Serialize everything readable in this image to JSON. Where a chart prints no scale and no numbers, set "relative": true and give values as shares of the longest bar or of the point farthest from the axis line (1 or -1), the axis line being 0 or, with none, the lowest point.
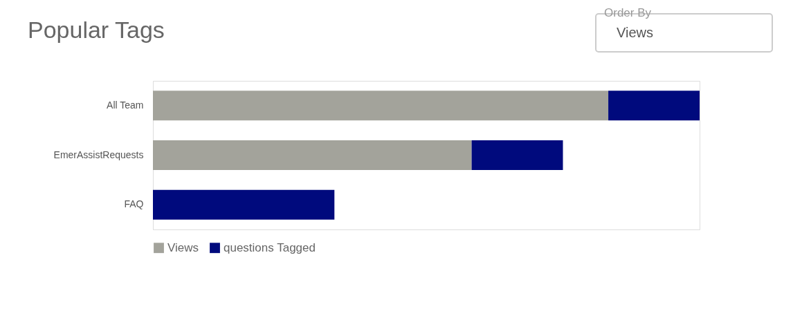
{
  "chart_data": {
    "type": "bar",
    "title": "Popular Tags",
    "orientation": "horizontal",
    "stacked": true,
    "relative": true,
    "legend": "bottom",
    "categories": [
      "All Team",
      "EmerAssistRequests",
      "FAQ"
    ],
    "series": [
      {
        "name": "Views",
        "color": "#a3a39b",
        "values": [
          0.833,
          0.583,
          0
        ]
      },
      {
        "name": "questions Tagged",
        "color": "#000a7d",
        "values": [
          0.167,
          0.167,
          0.332
        ]
      }
    ],
    "annotations": [
      "Order By",
      "Views"
    ]
  }
}
